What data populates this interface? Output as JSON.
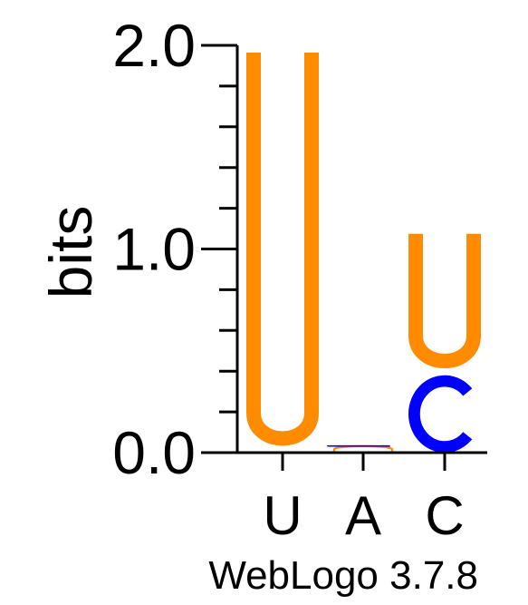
{
  "chart_data": {
    "type": "sequence-logo",
    "ylabel": "bits",
    "ylim": [
      0,
      2.0
    ],
    "y_tick_labels": [
      "0.0",
      "1.0",
      "2.0"
    ],
    "minor_tick_step": 0.2,
    "positions": [
      "U",
      "A",
      "C"
    ],
    "stacks": [
      {
        "position": "U",
        "letters": [
          {
            "letter": "U",
            "bits": 2.0,
            "color": "#ff8c00"
          }
        ]
      },
      {
        "position": "A",
        "letters": [
          {
            "letter": "U",
            "bits": 0.03,
            "color": "#ff8c00"
          },
          {
            "letter": "C",
            "bits": 0.005,
            "color": "#0000ff"
          }
        ]
      },
      {
        "position": "C",
        "letters": [
          {
            "letter": "C",
            "bits": 0.38,
            "color": "#0000ff"
          },
          {
            "letter": "U",
            "bits": 0.73,
            "color": "#ff8c00"
          }
        ]
      }
    ],
    "colors": {
      "U": "#ff8c00",
      "C": "#0000ff",
      "A": "#ff0000",
      "G": "#ffa500"
    }
  },
  "footer": {
    "credit": "WebLogo 3.7.8"
  }
}
